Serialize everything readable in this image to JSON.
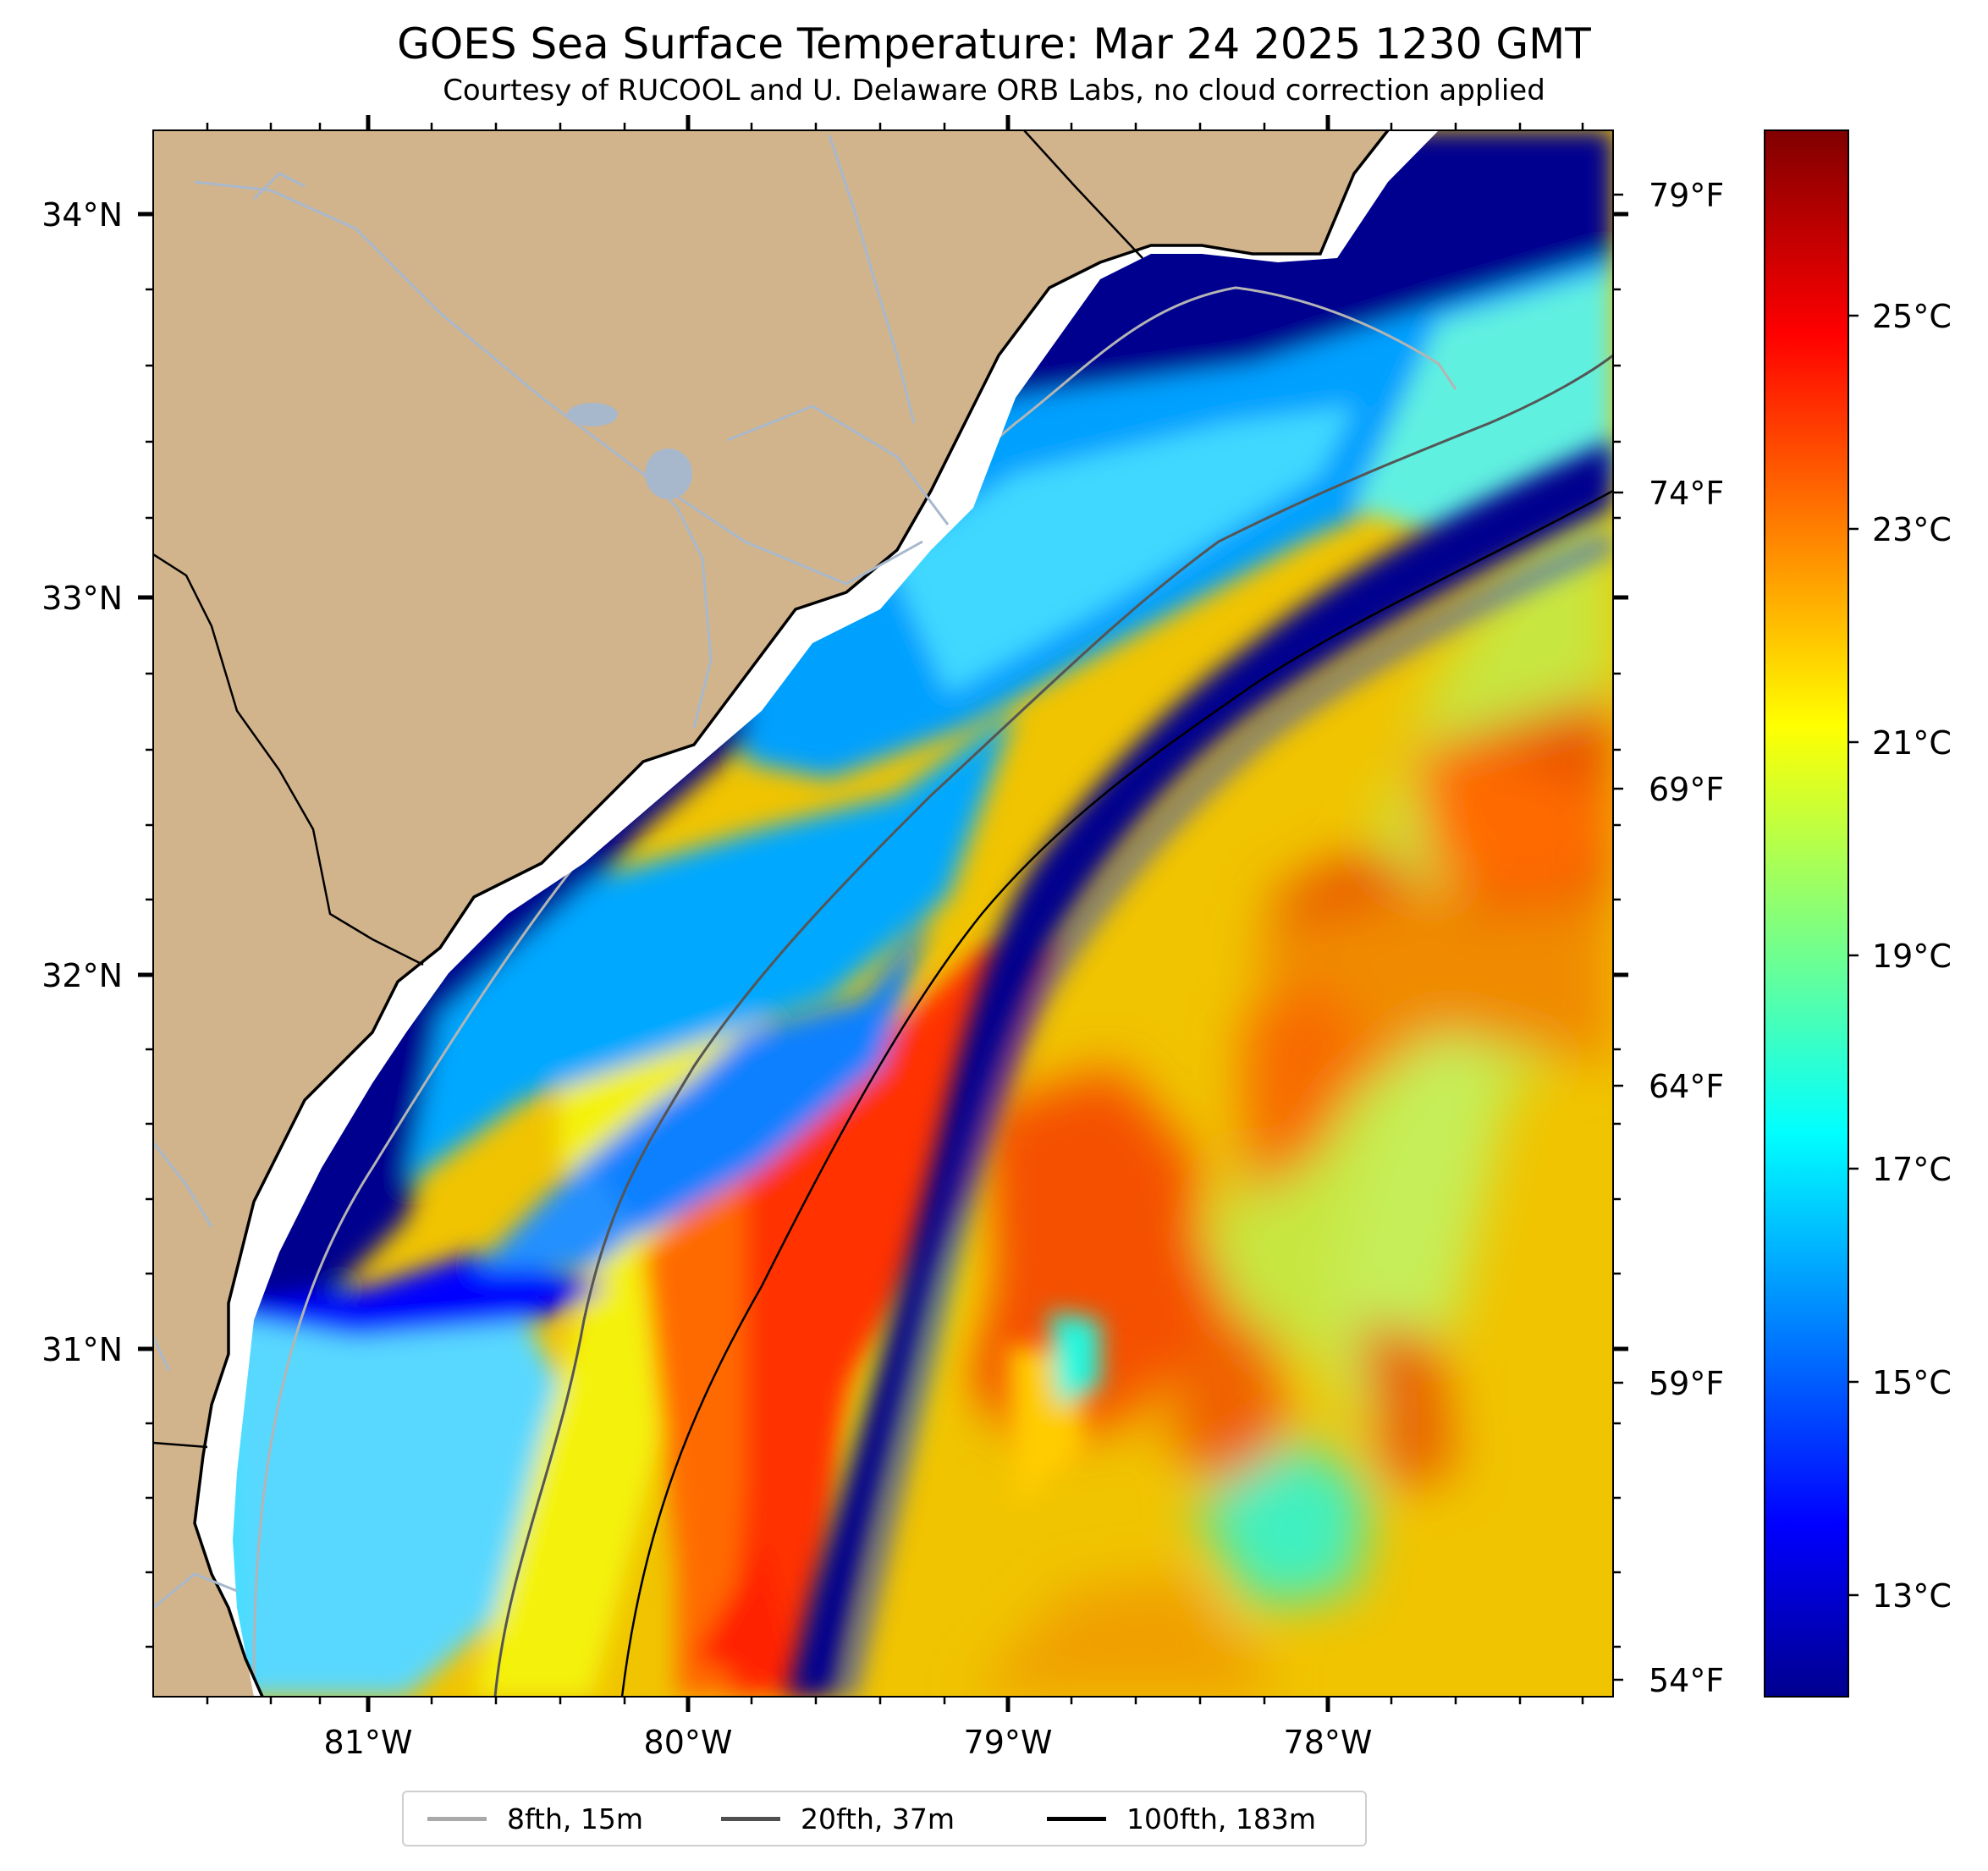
{
  "header": {
    "title": "GOES Sea Surface Temperature: Mar 24 2025 1230 GMT",
    "subtitle": "Courtesy of RUCOOL and U. Delaware ORB Labs, no cloud correction applied"
  },
  "map": {
    "land_color": "#D2B48C",
    "river_color": "#A8B8CC",
    "coast_color": "#000000",
    "latitude_labels": [
      "34°N",
      "33°N",
      "32°N",
      "31°N"
    ],
    "longitude_labels": [
      "81°W",
      "80°W",
      "79°W",
      "78°W"
    ],
    "fahrenheit_labels": [
      "79°F",
      "74°F",
      "69°F",
      "64°F",
      "59°F",
      "54°F"
    ]
  },
  "colorbar": {
    "colormap": "jet",
    "celsius_labels": [
      "25°C",
      "23°C",
      "21°C",
      "19°C",
      "17°C",
      "15°C",
      "13°C"
    ],
    "range_celsius": [
      12,
      27
    ]
  },
  "legend": {
    "items": [
      {
        "label": "8fth, 15m",
        "color": "#a9a9a9"
      },
      {
        "label": "20fth, 37m",
        "color": "#505050"
      },
      {
        "label": "100fth, 183m",
        "color": "#000000"
      }
    ]
  }
}
